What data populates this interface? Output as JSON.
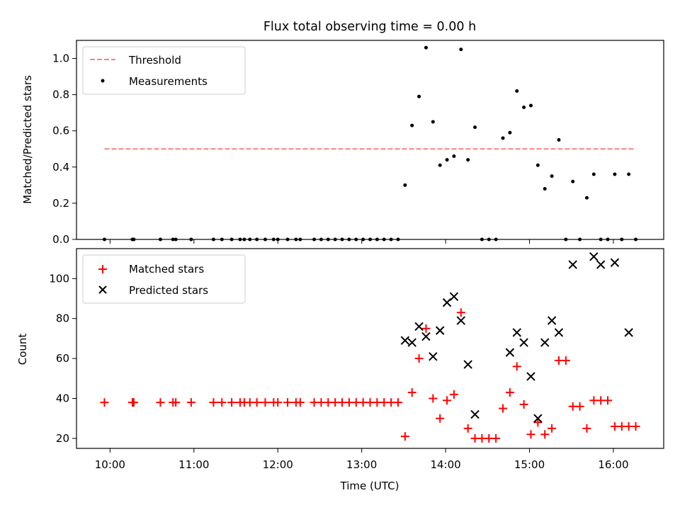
{
  "chart_data": [
    {
      "type": "scatter",
      "title": "Flux total observing time = 0.00 h",
      "xlabel": "",
      "ylabel": "Matched/Predicted stars",
      "ylim": [
        0,
        1.1
      ],
      "xlim": [
        "09:36",
        "16:36"
      ],
      "x_ticks": [
        "10:00",
        "11:00",
        "12:00",
        "13:00",
        "14:00",
        "15:00",
        "16:00"
      ],
      "y_ticks": [
        "0.0",
        "0.2",
        "0.4",
        "0.6",
        "0.8",
        "1.0"
      ],
      "legend_position": "top-left",
      "legend": [
        "Threshold",
        "Measurements"
      ],
      "series": [
        {
          "name": "Threshold",
          "kind": "dashed-line",
          "color": "#ff7f7f",
          "x": [
            "09:56",
            "16:15"
          ],
          "y": [
            0.5,
            0.5
          ]
        },
        {
          "name": "Measurements",
          "kind": "dot",
          "color": "#000000",
          "x": [
            "09:56",
            "10:16",
            "10:17",
            "10:36",
            "10:45",
            "10:47",
            "10:58",
            "11:14",
            "11:20",
            "11:27",
            "11:33",
            "11:36",
            "11:40",
            "11:45",
            "11:51",
            "11:57",
            "12:00",
            "12:07",
            "12:13",
            "12:16",
            "12:26",
            "12:31",
            "12:36",
            "12:41",
            "12:46",
            "12:51",
            "12:56",
            "13:01",
            "13:06",
            "13:11",
            "13:16",
            "13:21",
            "13:26",
            "13:31",
            "13:36",
            "13:41",
            "13:46",
            "13:51",
            "13:56",
            "14:01",
            "14:06",
            "14:11",
            "14:16",
            "14:21",
            "14:26",
            "14:31",
            "14:36",
            "14:41",
            "14:46",
            "14:51",
            "14:56",
            "15:01",
            "15:06",
            "15:11",
            "15:16",
            "15:21",
            "15:26",
            "15:31",
            "15:36",
            "15:41",
            "15:46",
            "15:51",
            "15:56",
            "16:01",
            "16:06",
            "16:11",
            "16:16"
          ],
          "y": [
            0,
            0,
            0,
            0,
            0,
            0,
            0,
            0,
            0,
            0,
            0,
            0,
            0,
            0,
            0,
            0,
            0,
            0,
            0,
            0,
            0,
            0,
            0,
            0,
            0,
            0,
            0,
            0,
            0,
            0,
            0,
            0,
            0,
            0.3,
            0.63,
            0.79,
            1.06,
            0.65,
            0.41,
            0.44,
            0.46,
            1.05,
            0.44,
            0.62,
            0,
            0,
            0,
            0.56,
            0.59,
            0.82,
            0.73,
            0.74,
            0.41,
            0.28,
            0.35,
            0.55,
            0,
            0.32,
            0,
            0.23,
            0.36,
            0,
            0,
            0.36,
            0,
            0.36,
            0
          ]
        }
      ]
    },
    {
      "type": "scatter",
      "title": "",
      "xlabel": "Time (UTC)",
      "ylabel": "Count",
      "ylim": [
        15,
        115
      ],
      "xlim": [
        "09:36",
        "16:36"
      ],
      "x_ticks": [
        "10:00",
        "11:00",
        "12:00",
        "13:00",
        "14:00",
        "15:00",
        "16:00"
      ],
      "y_ticks": [
        "20",
        "40",
        "60",
        "80",
        "100"
      ],
      "legend_position": "top-left",
      "legend": [
        "Matched stars",
        "Predicted stars"
      ],
      "series": [
        {
          "name": "Matched stars",
          "kind": "plus",
          "color": "#ff0000",
          "x": [
            "09:56",
            "10:16",
            "10:17",
            "10:36",
            "10:45",
            "10:47",
            "10:58",
            "11:14",
            "11:20",
            "11:27",
            "11:33",
            "11:36",
            "11:40",
            "11:45",
            "11:51",
            "11:57",
            "12:00",
            "12:07",
            "12:13",
            "12:16",
            "12:26",
            "12:31",
            "12:36",
            "12:41",
            "12:46",
            "12:51",
            "12:56",
            "13:01",
            "13:06",
            "13:11",
            "13:16",
            "13:21",
            "13:26",
            "13:31",
            "13:36",
            "13:41",
            "13:46",
            "13:51",
            "13:56",
            "14:01",
            "14:06",
            "14:11",
            "14:16",
            "14:21",
            "14:26",
            "14:31",
            "14:36",
            "14:41",
            "14:46",
            "14:51",
            "14:56",
            "15:01",
            "15:06",
            "15:11",
            "15:16",
            "15:21",
            "15:26",
            "15:31",
            "15:36",
            "15:41",
            "15:46",
            "15:51",
            "15:56",
            "16:01",
            "16:06",
            "16:11",
            "16:16"
          ],
          "y": [
            38,
            38,
            38,
            38,
            38,
            38,
            38,
            38,
            38,
            38,
            38,
            38,
            38,
            38,
            38,
            38,
            38,
            38,
            38,
            38,
            38,
            38,
            38,
            38,
            38,
            38,
            38,
            38,
            38,
            38,
            38,
            38,
            38,
            21,
            43,
            60,
            75,
            40,
            30,
            39,
            42,
            83,
            25,
            20,
            20,
            20,
            20,
            35,
            43,
            56,
            37,
            22,
            28,
            22,
            25,
            59,
            59,
            36,
            36,
            25,
            39,
            39,
            39,
            26,
            26,
            26,
            26
          ]
        },
        {
          "name": "Predicted stars",
          "kind": "x",
          "color": "#000000",
          "x": [
            "13:31",
            "13:36",
            "13:41",
            "13:46",
            "13:51",
            "13:56",
            "14:01",
            "14:06",
            "14:11",
            "14:16",
            "14:21",
            "14:46",
            "14:51",
            "14:56",
            "15:01",
            "15:06",
            "15:11",
            "15:16",
            "15:21",
            "15:31",
            "15:46",
            "15:51",
            "16:01",
            "16:11"
          ],
          "y": [
            69,
            68,
            76,
            71,
            61,
            74,
            88,
            91,
            79,
            57,
            32,
            63,
            73,
            68,
            51,
            30,
            68,
            79,
            73,
            107,
            111,
            107,
            108,
            73
          ]
        }
      ]
    }
  ]
}
